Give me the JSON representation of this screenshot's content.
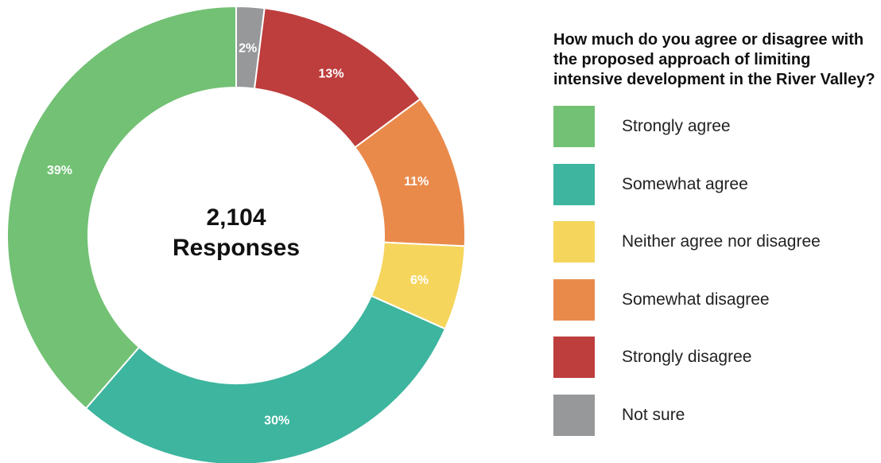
{
  "chart_data": {
    "type": "pie",
    "donut": true,
    "title": "How much do you agree or disagree with the proposed approach of limiting intensive development in the River Valley?",
    "center_total": "2,104",
    "center_caption": "Responses",
    "categories": [
      "Strongly agree",
      "Somewhat agree",
      "Neither agree nor disagree",
      "Somewhat disagree",
      "Strongly disagree",
      "Not sure"
    ],
    "values": [
      39,
      30,
      6,
      11,
      13,
      2
    ],
    "value_labels": [
      "39%",
      "30%",
      "6%",
      "11%",
      "13%",
      "2%"
    ],
    "colors": [
      "#72c174",
      "#3db59f",
      "#f5d55c",
      "#e98a4b",
      "#be3d3d",
      "#97989a"
    ],
    "legend_placement": "right"
  }
}
